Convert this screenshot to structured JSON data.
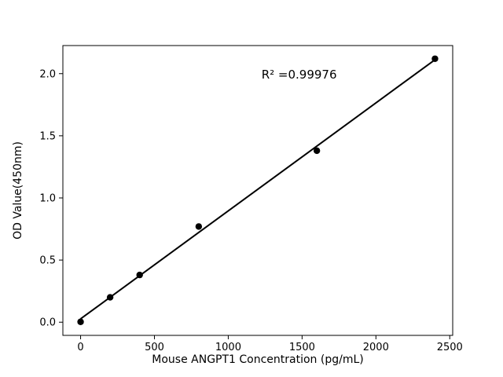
{
  "figure": {
    "background": "#ffffff"
  },
  "chart_data": {
    "type": "scatter",
    "title": "",
    "xlabel": "Mouse ANGPT1 Concentration (pg/mL)",
    "ylabel": "OD Value(450nm)",
    "x": [
      0,
      200,
      400,
      800,
      1600,
      2400
    ],
    "y": [
      0.003,
      0.2,
      0.38,
      0.77,
      1.38,
      2.12
    ],
    "fit_line": true,
    "annotation": {
      "text": "R² =0.99976",
      "x": 1480,
      "y": 1.96
    },
    "xlim": [
      -120,
      2520
    ],
    "ylim": [
      -0.106,
      2.226
    ],
    "xticks": [
      0,
      500,
      1000,
      1500,
      2000,
      2500
    ],
    "xtick_labels": [
      "0",
      "500",
      "1000",
      "1500",
      "2000",
      "2500"
    ],
    "yticks": [
      0.0,
      0.5,
      1.0,
      1.5,
      2.0
    ],
    "ytick_labels": [
      "0.0",
      "0.5",
      "1.0",
      "1.5",
      "2.0"
    ],
    "marker_color": "#000000",
    "line_color": "#000000",
    "axis_color": "#000000",
    "grid": false,
    "legend": null
  }
}
